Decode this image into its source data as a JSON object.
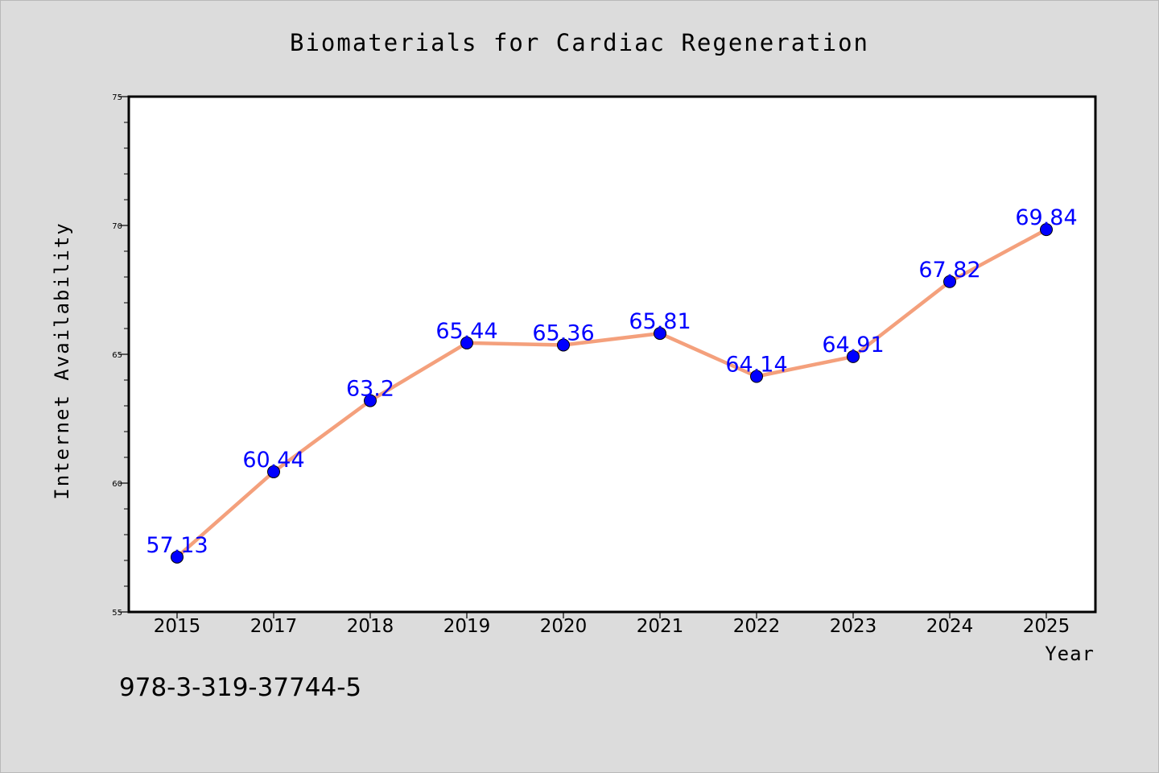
{
  "chart_data": {
    "type": "line",
    "title": "Biomaterials for Cardiac Regeneration",
    "xlabel": "Year",
    "ylabel": "Internet Availability",
    "categories": [
      "2015",
      "2017",
      "2018",
      "2019",
      "2020",
      "2021",
      "2022",
      "2023",
      "2024",
      "2025"
    ],
    "values": [
      57.13,
      60.44,
      63.2,
      65.44,
      65.36,
      65.81,
      64.14,
      64.91,
      67.82,
      69.84
    ],
    "data_labels": [
      "57.13",
      "60.44",
      "63.2",
      "65.44",
      "65.36",
      "65.81",
      "64.14",
      "64.91",
      "67.82",
      "69.84"
    ],
    "ylim": [
      55,
      75
    ],
    "yticks": [
      55,
      60,
      65,
      70,
      75
    ],
    "ytick_labels": [
      "55",
      "60",
      "65",
      "70",
      "75"
    ],
    "grid": false,
    "line_color": "#f4a07c",
    "marker_color": "#0000ff",
    "label_color": "#0000ff"
  },
  "footer": {
    "isbn": "978-3-319-37744-5"
  }
}
